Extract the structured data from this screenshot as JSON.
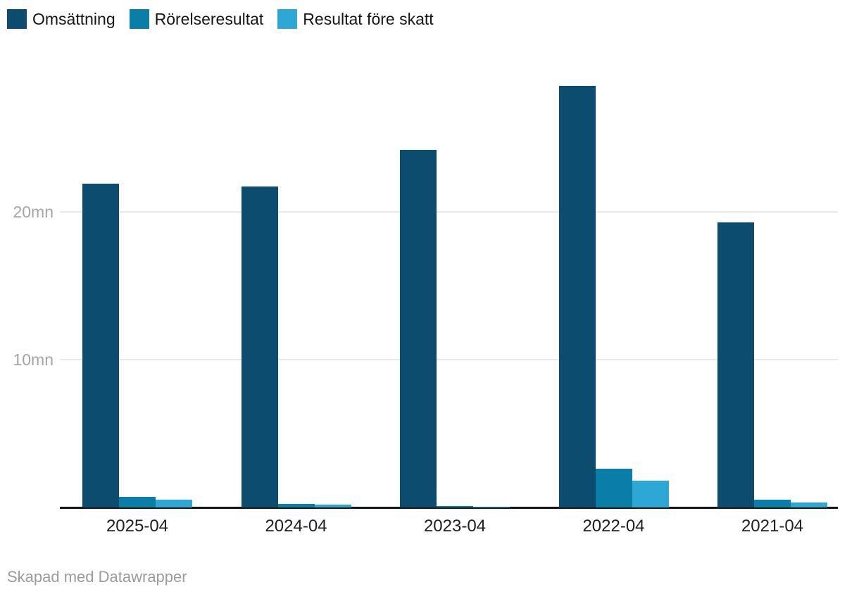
{
  "legend": {
    "items": [
      {
        "label": "Omsättning",
        "color": "#0c4d6f"
      },
      {
        "label": "Rörelseresultat",
        "color": "#0b7da9"
      },
      {
        "label": "Resultat före skatt",
        "color": "#2ea7d7"
      }
    ]
  },
  "y_axis": {
    "ticks": [
      {
        "value": 10,
        "label": "10mn"
      },
      {
        "value": 20,
        "label": "20mn"
      }
    ]
  },
  "footer": {
    "text": "Skapad med Datawrapper"
  },
  "chart_data": {
    "type": "bar",
    "categories": [
      "2025-04",
      "2024-04",
      "2023-04",
      "2022-04",
      "2021-04"
    ],
    "series": [
      {
        "name": "Omsättning",
        "color": "#0c4d6f",
        "values": [
          21.9,
          21.7,
          24.2,
          28.5,
          19.3
        ]
      },
      {
        "name": "Rörelseresultat",
        "color": "#0b7da9",
        "values": [
          0.7,
          0.25,
          0.1,
          2.6,
          0.5
        ]
      },
      {
        "name": "Resultat före skatt",
        "color": "#2ea7d7",
        "values": [
          0.5,
          0.2,
          0.05,
          1.8,
          0.35
        ]
      }
    ],
    "unit": "mn",
    "ylim": [
      0,
      30
    ],
    "grid": true,
    "legend_position": "top-left",
    "title": "",
    "xlabel": "",
    "ylabel": "mn"
  }
}
